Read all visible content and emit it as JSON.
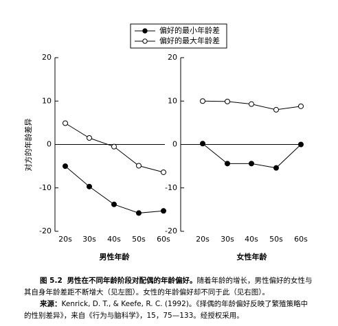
{
  "chart_data": [
    {
      "type": "line",
      "ylabel": "对方的年龄差异",
      "xlabel": "男性年龄",
      "categories": [
        "20s",
        "30s",
        "40s",
        "50s",
        "60s"
      ],
      "series": [
        {
          "name": "偏好的最小年龄差",
          "color": "#000000",
          "marker_fill": "#000000",
          "values": [
            -5,
            -9.7,
            -13.8,
            -15.8,
            -15.3
          ]
        },
        {
          "name": "偏好的最大年龄差",
          "color": "#000000",
          "marker_fill": "#ffffff",
          "values": [
            4.9,
            1.5,
            -0.5,
            -4.9,
            -6.4
          ]
        }
      ],
      "ylim": [
        -20,
        20
      ],
      "yticks": [
        -20,
        -10,
        0,
        10,
        20
      ],
      "reference_line": 0
    },
    {
      "type": "line",
      "xlabel": "女性年龄",
      "categories": [
        "20s",
        "30s",
        "40s",
        "50s",
        "60s"
      ],
      "series": [
        {
          "color": "#000000",
          "marker_fill": "#000000",
          "values": [
            0.2,
            -4.4,
            -4.4,
            -5.4,
            0
          ]
        },
        {
          "color": "#000000",
          "marker_fill": "#ffffff",
          "values": [
            10,
            9.9,
            9.3,
            8,
            8.8
          ]
        }
      ],
      "ylim": [
        -20,
        20
      ],
      "yticks": [
        -20,
        -10,
        0,
        10,
        20
      ],
      "reference_line": 0
    }
  ],
  "caption": {
    "figure_label": "图 5.2",
    "title": "男性在不同年龄阶段对配偶的年龄偏好。",
    "text": "随着年龄的增长，男性偏好的女性与其自身年龄差距不断增大（见左图）。女性的年龄偏好却不同于此（见右图）。",
    "source_label": "来源：",
    "source": "Kenrick, D. T., & Keefe, R. C. (1992)。《择偶的年龄偏好反映了繁殖策略中的性别差异》，来自《行为与脑科学》，15，75—133。经授权采用。"
  }
}
